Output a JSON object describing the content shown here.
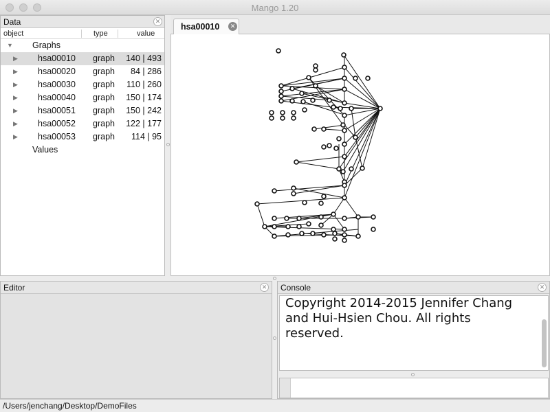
{
  "window": {
    "title": "Mango 1.20"
  },
  "data_panel": {
    "title": "Data",
    "columns": {
      "object": "object",
      "type": "type",
      "value": "value"
    },
    "graphs_label": "Graphs",
    "values_label": "Values",
    "rows": [
      {
        "name": "hsa00010",
        "type": "graph",
        "value": "140 | 493"
      },
      {
        "name": "hsa00020",
        "type": "graph",
        "value": "84 | 286"
      },
      {
        "name": "hsa00030",
        "type": "graph",
        "value": "110 | 260"
      },
      {
        "name": "hsa00040",
        "type": "graph",
        "value": "150 | 174"
      },
      {
        "name": "hsa00051",
        "type": "graph",
        "value": "150 | 242"
      },
      {
        "name": "hsa00052",
        "type": "graph",
        "value": "122 | 177"
      },
      {
        "name": "hsa00053",
        "type": "graph",
        "value": "114 | 95"
      }
    ]
  },
  "graph_tab": {
    "label": "hsa00010"
  },
  "editor": {
    "title": "Editor"
  },
  "console": {
    "title": "Console",
    "output": "Copyright 2014-2015 Jennifer Chang and Hui-Hsien Chou. All rights reserved."
  },
  "status": {
    "path": "/Users/jenchang/Desktop/DemoFiles"
  },
  "colors": {
    "selected_row": "#dcdcdc",
    "node": "#111111"
  }
}
